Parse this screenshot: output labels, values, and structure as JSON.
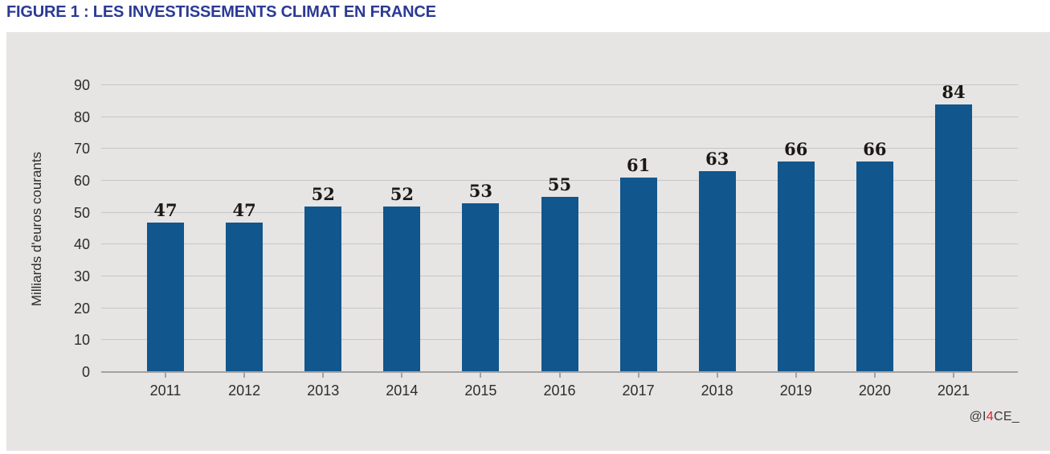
{
  "figure": {
    "title": "FIGURE 1 : LES INVESTISSEMENTS CLIMAT EN FRANCE"
  },
  "watermark": {
    "prefix": "@I",
    "highlight": "4",
    "suffix": "CE_"
  },
  "chart_data": {
    "type": "bar",
    "categories": [
      "2011",
      "2012",
      "2013",
      "2014",
      "2015",
      "2016",
      "2017",
      "2018",
      "2019",
      "2020",
      "2021"
    ],
    "values": [
      47,
      47,
      52,
      52,
      53,
      55,
      61,
      63,
      66,
      66,
      84
    ],
    "title": "FIGURE 1 : LES INVESTISSEMENTS CLIMAT EN FRANCE",
    "xlabel": "",
    "ylabel": "Milliards d'euros courants",
    "ylim": [
      0,
      90
    ],
    "ytick_step": 10,
    "yticks": [
      0,
      10,
      20,
      30,
      40,
      50,
      60,
      70,
      80,
      90
    ],
    "grid": true,
    "legend": "none",
    "bar_labels_shown": true,
    "source_tag": "@I4CE_"
  },
  "colors": {
    "title_blue": "#2b3a94",
    "bar_blue": "#11568c",
    "panel_background": "#e6e5e4",
    "gridline": "#c6c5c8",
    "axis_line": "#a3a2a1",
    "axis_text": "#2e2c29",
    "value_text": "#1b1813",
    "watermark_red": "#ed1c24",
    "watermark_text": "#3a393b"
  }
}
